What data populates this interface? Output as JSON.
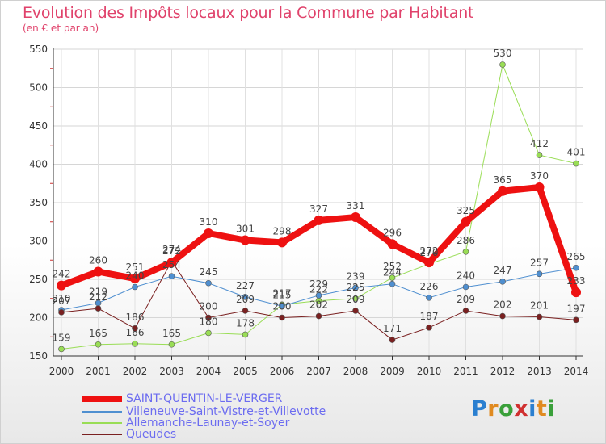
{
  "title": "Evolution des Impôts locaux pour la Commune par Habitant",
  "subtitle": "(en € et par an)",
  "logo": {
    "text": "Proxiti",
    "colors": [
      "#2a7fd0",
      "#e08a20",
      "#3aa03a",
      "#d03030",
      "#2a7fd0",
      "#e08a20",
      "#3aa03a"
    ]
  },
  "chart_data": {
    "type": "line",
    "x": [
      "2000",
      "2001",
      "2002",
      "2003",
      "2004",
      "2005",
      "2006",
      "2007",
      "2008",
      "2009",
      "2010",
      "2011",
      "2012",
      "2013",
      "2014"
    ],
    "ylim": [
      150,
      550
    ],
    "yticks": [
      150,
      200,
      250,
      300,
      350,
      400,
      450,
      500,
      550
    ],
    "grid": true,
    "series": [
      {
        "name": "SAINT-QUENTIN-LE-VERGER",
        "color": "#ee1111",
        "width": 8,
        "values": [
          242,
          260,
          251,
          272,
          310,
          301,
          298,
          327,
          331,
          296,
          272,
          325,
          365,
          370,
          233
        ],
        "labels": [
          "242",
          "260",
          "251",
          "272",
          "310",
          "301",
          "298",
          "327",
          "331",
          "296",
          "272",
          "325",
          "365",
          "370",
          "233"
        ]
      },
      {
        "name": "Villeneuve-Saint-Vistre-et-Villevotte",
        "color": "#4f8fd0",
        "width": 1,
        "values": [
          210,
          219,
          240,
          254,
          245,
          227,
          215,
          229,
          239,
          244,
          226,
          240,
          247,
          257,
          265
        ],
        "labels": [
          "210",
          "219",
          "240",
          "254",
          "245",
          "227",
          "215",
          "229",
          "239",
          "244",
          "226",
          "240",
          "247",
          "257",
          "265"
        ]
      },
      {
        "name": "Allemanche-Launay-et-Soyer",
        "color": "#99dd55",
        "width": 1,
        "values": [
          159,
          165,
          166,
          165,
          180,
          178,
          217,
          222,
          225,
          252,
          270,
          286,
          530,
          412,
          401
        ],
        "labels": [
          "159",
          "165",
          "166",
          "165",
          "180",
          "178",
          "217",
          "222",
          "225",
          "252",
          "270",
          "286",
          "530",
          "412",
          "401"
        ]
      },
      {
        "name": "Queudes",
        "color": "#7a2020",
        "width": 1,
        "values": [
          207,
          212,
          186,
          274,
          200,
          209,
          200,
          202,
          209,
          171,
          187,
          209,
          202,
          201,
          197
        ],
        "labels": [
          "207",
          "212",
          "186",
          "274",
          "200",
          "209",
          "200",
          "202",
          "209",
          "171",
          "187",
          "209",
          "202",
          "201",
          "197"
        ]
      }
    ]
  }
}
